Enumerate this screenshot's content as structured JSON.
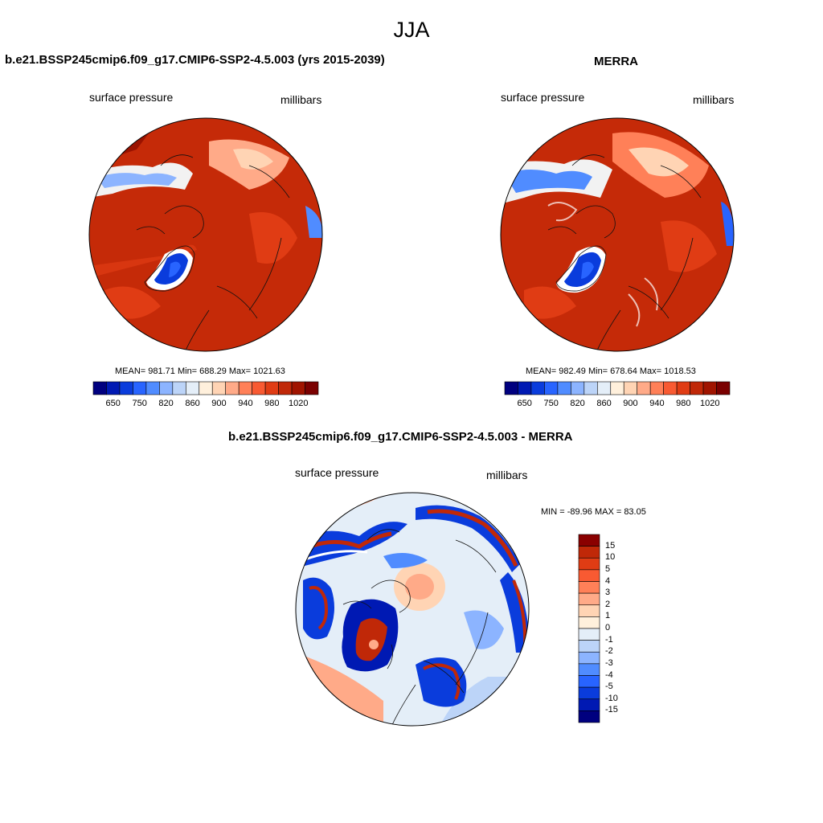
{
  "title": "JJA",
  "panels": [
    {
      "title": "b.e21.BSSP245cmip6.f09_g17.CMIP6-SSP2-4.5.003 (yrs 2015-2039)",
      "left_label": "surface pressure",
      "right_label": "millibars",
      "stats": "MEAN= 981.71  Min= 688.29  Max= 1021.63"
    },
    {
      "title": "MERRA",
      "left_label": "surface pressure",
      "right_label": "millibars",
      "stats": "MEAN= 982.49  Min= 678.64  Max= 1018.53"
    },
    {
      "title": "b.e21.BSSP245cmip6.f09_g17.CMIP6-SSP2-4.5.003 - MERRA",
      "left_label": "surface pressure",
      "right_label": "millibars",
      "stats": "MIN = -89.96 MAX =  83.05"
    }
  ],
  "colorbar_abs": {
    "colors": [
      "#00007f",
      "#0019b3",
      "#0a3cdc",
      "#2864ff",
      "#508cff",
      "#8cb4ff",
      "#bcd4f8",
      "#e4eef8",
      "#fff0dc",
      "#ffd4b4",
      "#ffaa88",
      "#ff8058",
      "#f85a32",
      "#e03c14",
      "#c02808",
      "#a01400",
      "#7a0000"
    ],
    "labels": [
      "650",
      "750",
      "820",
      "860",
      "900",
      "940",
      "980",
      "1020"
    ]
  },
  "colorbar_diff": {
    "colors": [
      "#00007f",
      "#0019b3",
      "#0a3cdc",
      "#2864ff",
      "#508cff",
      "#8cb4ff",
      "#bcd4f8",
      "#e4eef8",
      "#fff0dc",
      "#ffd4b4",
      "#ffaa88",
      "#ff8058",
      "#f85a32",
      "#e03c14",
      "#c02808",
      "#8a0000"
    ],
    "labels": [
      "15",
      "10",
      "5",
      "4",
      "3",
      "2",
      "1",
      "0",
      "-1",
      "-2",
      "-3",
      "-4",
      "-5",
      "-10",
      "-15"
    ]
  }
}
